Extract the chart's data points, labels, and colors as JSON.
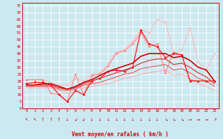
{
  "background_color": "#cce8f0",
  "grid_color": "#ffffff",
  "xlim": [
    -0.5,
    23.5
  ],
  "ylim": [
    0,
    77
  ],
  "yticks": [
    0,
    5,
    10,
    15,
    20,
    25,
    30,
    35,
    40,
    45,
    50,
    55,
    60,
    65,
    70,
    75
  ],
  "xticks": [
    0,
    1,
    2,
    3,
    4,
    5,
    6,
    7,
    8,
    9,
    10,
    11,
    12,
    13,
    14,
    15,
    16,
    17,
    18,
    19,
    20,
    21,
    22,
    23
  ],
  "xlabel": "Vent moyen/en rafales ( km/h )",
  "series": [
    {
      "x": [
        0,
        1,
        2,
        3,
        4,
        5,
        6,
        7,
        8,
        9,
        10,
        11,
        12,
        13,
        14,
        15,
        16,
        17,
        18,
        19,
        20,
        21,
        22,
        23
      ],
      "y": [
        18,
        19,
        19,
        17,
        10,
        5,
        13,
        10,
        20,
        22,
        27,
        28,
        27,
        30,
        57,
        47,
        45,
        37,
        40,
        39,
        20,
        20,
        20,
        20
      ],
      "color": "#ff0000",
      "lw": 0.8,
      "marker": "D",
      "ms": 1.8,
      "zorder": 5
    },
    {
      "x": [
        0,
        1,
        2,
        3,
        4,
        5,
        6,
        7,
        8,
        9,
        10,
        11,
        12,
        13,
        14,
        15,
        16,
        17,
        18,
        19,
        20,
        21,
        22,
        23
      ],
      "y": [
        21,
        21,
        21,
        11,
        10,
        5,
        25,
        10,
        24,
        25,
        31,
        40,
        42,
        47,
        55,
        45,
        47,
        26,
        41,
        39,
        21,
        20,
        20,
        20
      ],
      "color": "#ff8888",
      "lw": 0.8,
      "marker": "D",
      "ms": 1.8,
      "zorder": 4
    },
    {
      "x": [
        0,
        1,
        2,
        3,
        4,
        5,
        6,
        7,
        8,
        9,
        10,
        11,
        12,
        13,
        14,
        15,
        16,
        17,
        18,
        19,
        20,
        21,
        22,
        23
      ],
      "y": [
        21,
        21,
        21,
        19,
        17,
        17,
        22,
        20,
        25,
        26,
        33,
        41,
        43,
        49,
        57,
        55,
        65,
        63,
        40,
        43,
        59,
        34,
        28,
        40
      ],
      "color": "#ffbbbb",
      "lw": 0.8,
      "marker": "o",
      "ms": 1.8,
      "zorder": 3
    },
    {
      "x": [
        0,
        1,
        2,
        3,
        4,
        5,
        6,
        7,
        8,
        9,
        10,
        11,
        12,
        13,
        14,
        15,
        16,
        17,
        18,
        19,
        20,
        21,
        22,
        23
      ],
      "y": [
        17,
        17,
        18,
        18,
        16,
        14,
        16,
        19,
        21,
        24,
        27,
        29,
        31,
        33,
        38,
        40,
        40,
        40,
        37,
        38,
        35,
        30,
        28,
        20
      ],
      "color": "#cc0000",
      "lw": 1.2,
      "marker": null,
      "ms": 0,
      "zorder": 6
    },
    {
      "x": [
        0,
        1,
        2,
        3,
        4,
        5,
        6,
        7,
        8,
        9,
        10,
        11,
        12,
        13,
        14,
        15,
        16,
        17,
        18,
        19,
        20,
        21,
        22,
        23
      ],
      "y": [
        17,
        17,
        17,
        17,
        15,
        14,
        15,
        18,
        20,
        22,
        24,
        26,
        28,
        30,
        33,
        35,
        36,
        36,
        32,
        33,
        30,
        26,
        23,
        18
      ],
      "color": "#dd3333",
      "lw": 0.9,
      "marker": null,
      "ms": 0,
      "zorder": 5
    },
    {
      "x": [
        0,
        1,
        2,
        3,
        4,
        5,
        6,
        7,
        8,
        9,
        10,
        11,
        12,
        13,
        14,
        15,
        16,
        17,
        18,
        19,
        20,
        21,
        22,
        23
      ],
      "y": [
        16,
        16,
        16,
        16,
        14,
        13,
        14,
        17,
        18,
        19,
        21,
        23,
        25,
        26,
        29,
        30,
        31,
        32,
        28,
        29,
        26,
        22,
        20,
        16
      ],
      "color": "#ee5555",
      "lw": 0.8,
      "marker": null,
      "ms": 0,
      "zorder": 4
    },
    {
      "x": [
        0,
        1,
        2,
        3,
        4,
        5,
        6,
        7,
        8,
        9,
        10,
        11,
        12,
        13,
        14,
        15,
        16,
        17,
        18,
        19,
        20,
        21,
        22,
        23
      ],
      "y": [
        15,
        15,
        15,
        15,
        13,
        11,
        12,
        15,
        16,
        17,
        18,
        20,
        22,
        23,
        25,
        26,
        27,
        28,
        24,
        25,
        22,
        18,
        16,
        13
      ],
      "color": "#ffaaaa",
      "lw": 0.7,
      "marker": null,
      "ms": 0,
      "zorder": 3
    }
  ],
  "wind_symbols": [
    "↖",
    "↖",
    "↑",
    "↑",
    "↑",
    "↓",
    "↙",
    "↙",
    "↓",
    "↓",
    "↓",
    "↓",
    "↓",
    "↓",
    "↓",
    "↓",
    "↓",
    "↘",
    "↘",
    "↘",
    "→",
    "→",
    "→",
    "↗"
  ]
}
